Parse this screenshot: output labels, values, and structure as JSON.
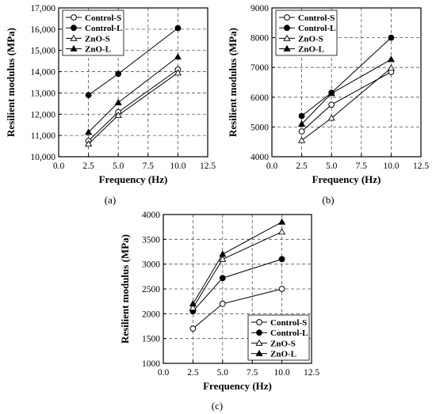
{
  "chart_data": [
    {
      "panel_label": "(a)",
      "type": "line",
      "xlabel": "Frequency (Hz)",
      "ylabel": "Resilient modulus (MPa)",
      "xlim": [
        0.0,
        12.5
      ],
      "ylim": [
        10000,
        17000
      ],
      "xticks": [
        0.0,
        2.5,
        5.0,
        7.5,
        10.0,
        12.5
      ],
      "xtick_labels": [
        "0.0",
        "2.5",
        "5.0",
        "7.5",
        "10.0",
        "12.5"
      ],
      "yticks": [
        10000,
        11000,
        12000,
        13000,
        14000,
        15000,
        16000,
        17000
      ],
      "ytick_labels": [
        "10,000",
        "11,000",
        "12,000",
        "13,000",
        "14,000",
        "15,000",
        "16,000",
        "17,000"
      ],
      "grid": true,
      "legend_position": "top-left",
      "x": [
        2.5,
        5.0,
        10.0
      ],
      "series": [
        {
          "name": "Control-S",
          "marker": "circle-open",
          "values": [
            10750,
            12100,
            14100
          ]
        },
        {
          "name": "Control-L",
          "marker": "circle-filled",
          "values": [
            12900,
            13900,
            16050
          ]
        },
        {
          "name": "ZnO-S",
          "marker": "triangle-open",
          "values": [
            10600,
            11950,
            13950
          ]
        },
        {
          "name": "ZnO-L",
          "marker": "triangle-filled",
          "values": [
            11150,
            12550,
            14700
          ]
        }
      ]
    },
    {
      "panel_label": "(b)",
      "type": "line",
      "xlabel": "Frequency (Hz)",
      "ylabel": "Resilient modulus (MPa)",
      "xlim": [
        0.0,
        12.5
      ],
      "ylim": [
        4000,
        9000
      ],
      "xticks": [
        0.0,
        2.5,
        5.0,
        7.5,
        10.0,
        12.5
      ],
      "xtick_labels": [
        "0.0",
        "2.5",
        "5.0",
        "7.5",
        "10.0",
        "12.5"
      ],
      "yticks": [
        4000,
        5000,
        6000,
        7000,
        8000,
        9000
      ],
      "ytick_labels": [
        "4000",
        "5000",
        "6000",
        "7000",
        "8000",
        "9000"
      ],
      "grid": true,
      "legend_position": "top-left",
      "x": [
        2.5,
        5.0,
        10.0
      ],
      "series": [
        {
          "name": "Control-S",
          "marker": "circle-open",
          "values": [
            4850,
            5750,
            6850
          ]
        },
        {
          "name": "Control-L",
          "marker": "circle-filled",
          "values": [
            5370,
            6150,
            8000
          ]
        },
        {
          "name": "ZnO-S",
          "marker": "triangle-open",
          "values": [
            4550,
            5300,
            6980
          ]
        },
        {
          "name": "ZnO-L",
          "marker": "triangle-filled",
          "values": [
            5100,
            6130,
            7270
          ]
        }
      ]
    },
    {
      "panel_label": "(c)",
      "type": "line",
      "xlabel": "Frequency (Hz)",
      "ylabel": "Resilient modulus (MPa)",
      "xlim": [
        0.0,
        12.5
      ],
      "ylim": [
        1000,
        4000
      ],
      "xticks": [
        0.0,
        2.5,
        5.0,
        7.5,
        10.0,
        12.5
      ],
      "xtick_labels": [
        "0.0",
        "2.5",
        "5.0",
        "7.5",
        "10.0",
        "12.5"
      ],
      "yticks": [
        1000,
        1500,
        2000,
        2500,
        3000,
        3500,
        4000
      ],
      "ytick_labels": [
        "1000",
        "1500",
        "2000",
        "2500",
        "3000",
        "3500",
        "4000"
      ],
      "grid": true,
      "legend_position": "bottom-right",
      "x": [
        2.5,
        5.0,
        10.0
      ],
      "series": [
        {
          "name": "Control-S",
          "marker": "circle-open",
          "values": [
            1700,
            2200,
            2500
          ]
        },
        {
          "name": "Control-L",
          "marker": "circle-filled",
          "values": [
            2050,
            2720,
            3100
          ]
        },
        {
          "name": "ZnO-S",
          "marker": "triangle-open",
          "values": [
            2120,
            3100,
            3650
          ]
        },
        {
          "name": "ZnO-L",
          "marker": "triangle-filled",
          "values": [
            2200,
            3200,
            3850
          ]
        }
      ]
    }
  ]
}
